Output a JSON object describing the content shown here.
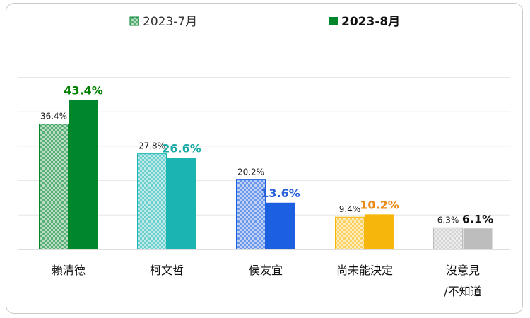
{
  "chart_data": {
    "type": "bar",
    "categories": [
      {
        "line1": "賴清德",
        "line2": ""
      },
      {
        "line1": "柯文哲",
        "line2": ""
      },
      {
        "line1": "侯友宜",
        "line2": ""
      },
      {
        "line1": "尚未能決定",
        "line2": ""
      },
      {
        "line1": "沒意見",
        "line2": "/不知道"
      }
    ],
    "series": [
      {
        "name": "2023-7月",
        "values": [
          36.4,
          27.8,
          20.2,
          9.4,
          6.3
        ],
        "pattern": "checkered"
      },
      {
        "name": "2023-8月",
        "values": [
          43.4,
          26.6,
          13.6,
          10.2,
          6.1
        ],
        "pattern": "solid"
      }
    ],
    "value_labels": {
      "jul": [
        "36.4%",
        "27.8%",
        "20.2%",
        "9.4%",
        "6.3%"
      ],
      "aug": [
        "43.4%",
        "26.6%",
        "13.6%",
        "10.2%",
        "6.1%"
      ]
    },
    "legend": {
      "position": "top",
      "jul_label": "2023-7月",
      "aug_label": "2023-8月"
    },
    "ylim": [
      0,
      50
    ],
    "grid": true,
    "colors": {
      "categories": [
        "#00862b",
        "#1ab5b2",
        "#1c5fe0",
        "#f6b60c",
        "#bdbdbd"
      ],
      "aug_label_colors": [
        "#008000",
        "#18aaa6",
        "#2a60d8",
        "#e98a16",
        "#111111"
      ],
      "grid": "#e6e6e6",
      "axis": "#bdbdbd"
    }
  }
}
